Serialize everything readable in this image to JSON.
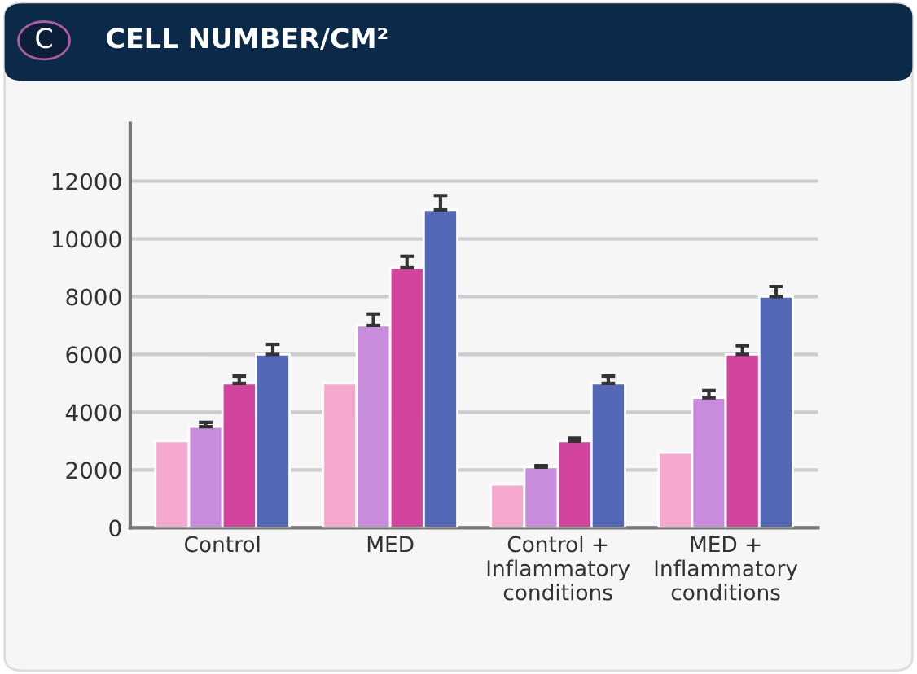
{
  "chart_data": {
    "type": "bar",
    "title": "CELL NUMBER/CM²",
    "annotations": [
      "C"
    ],
    "categories": [
      "Control",
      "MED",
      "Control +\nInflammatory\nconditions",
      "MED +\nInflammatory\nconditions"
    ],
    "series": [
      {
        "color": "#f7a8cf",
        "values": [
          3000,
          5000,
          1500,
          2600
        ]
      },
      {
        "color": "#c98cdc",
        "values": [
          3500,
          7000,
          2100,
          4500
        ],
        "errors": [
          150,
          400,
          50,
          250
        ]
      },
      {
        "color": "#d3449e",
        "values": [
          5000,
          9000,
          3000,
          6000
        ],
        "errors": [
          250,
          400,
          100,
          300
        ]
      },
      {
        "color": "#5368b6",
        "values": [
          6000,
          11000,
          5000,
          8000
        ],
        "errors": [
          350,
          500,
          250,
          350
        ]
      }
    ],
    "ylim": [
      0,
      14000
    ],
    "yticks": [
      0,
      2000,
      4000,
      6000,
      8000,
      10000,
      12000
    ],
    "grid": "y"
  }
}
